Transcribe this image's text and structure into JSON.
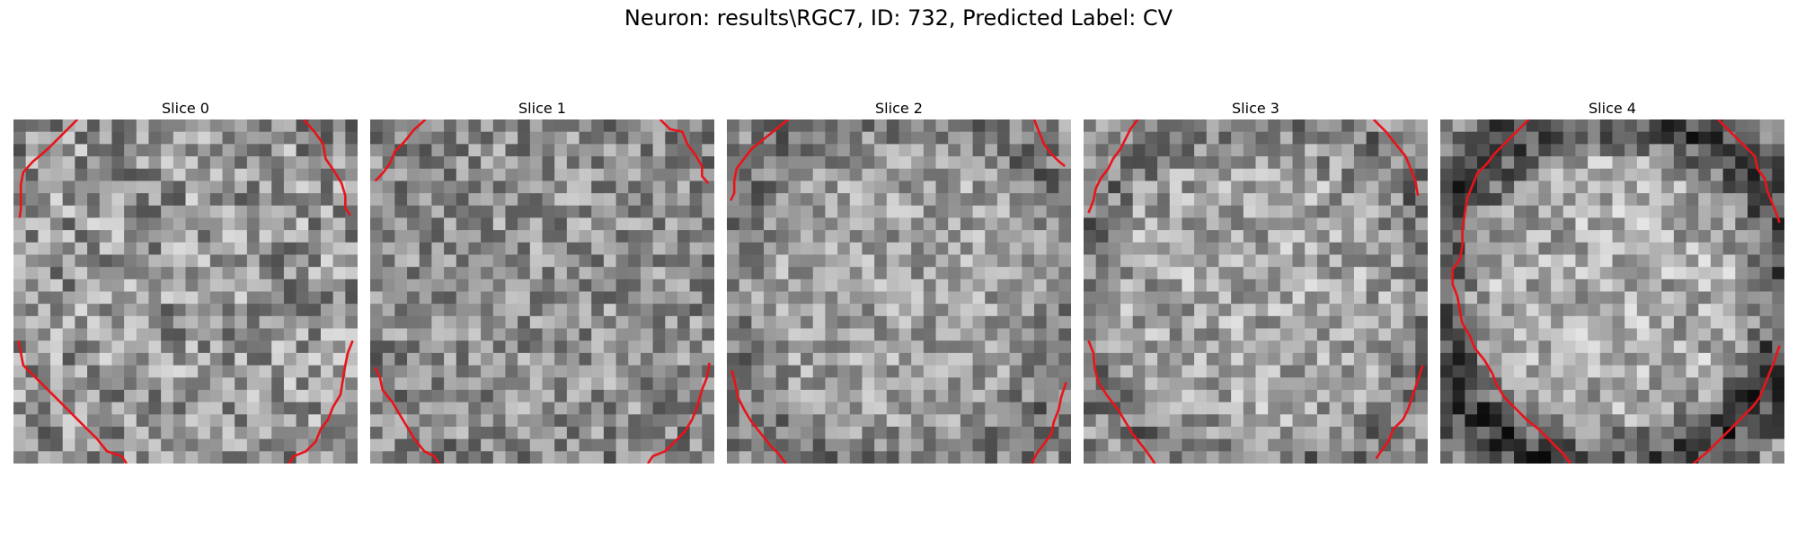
{
  "figure": {
    "title": "Neuron: results\\RGC7, ID: 732, Predicted Label: CV",
    "contour_color": "#e8141a"
  },
  "slices": [
    {
      "label": "Slice 0"
    },
    {
      "label": "Slice 1"
    },
    {
      "label": "Slice 2"
    },
    {
      "label": "Slice 3"
    },
    {
      "label": "Slice 4"
    }
  ]
}
